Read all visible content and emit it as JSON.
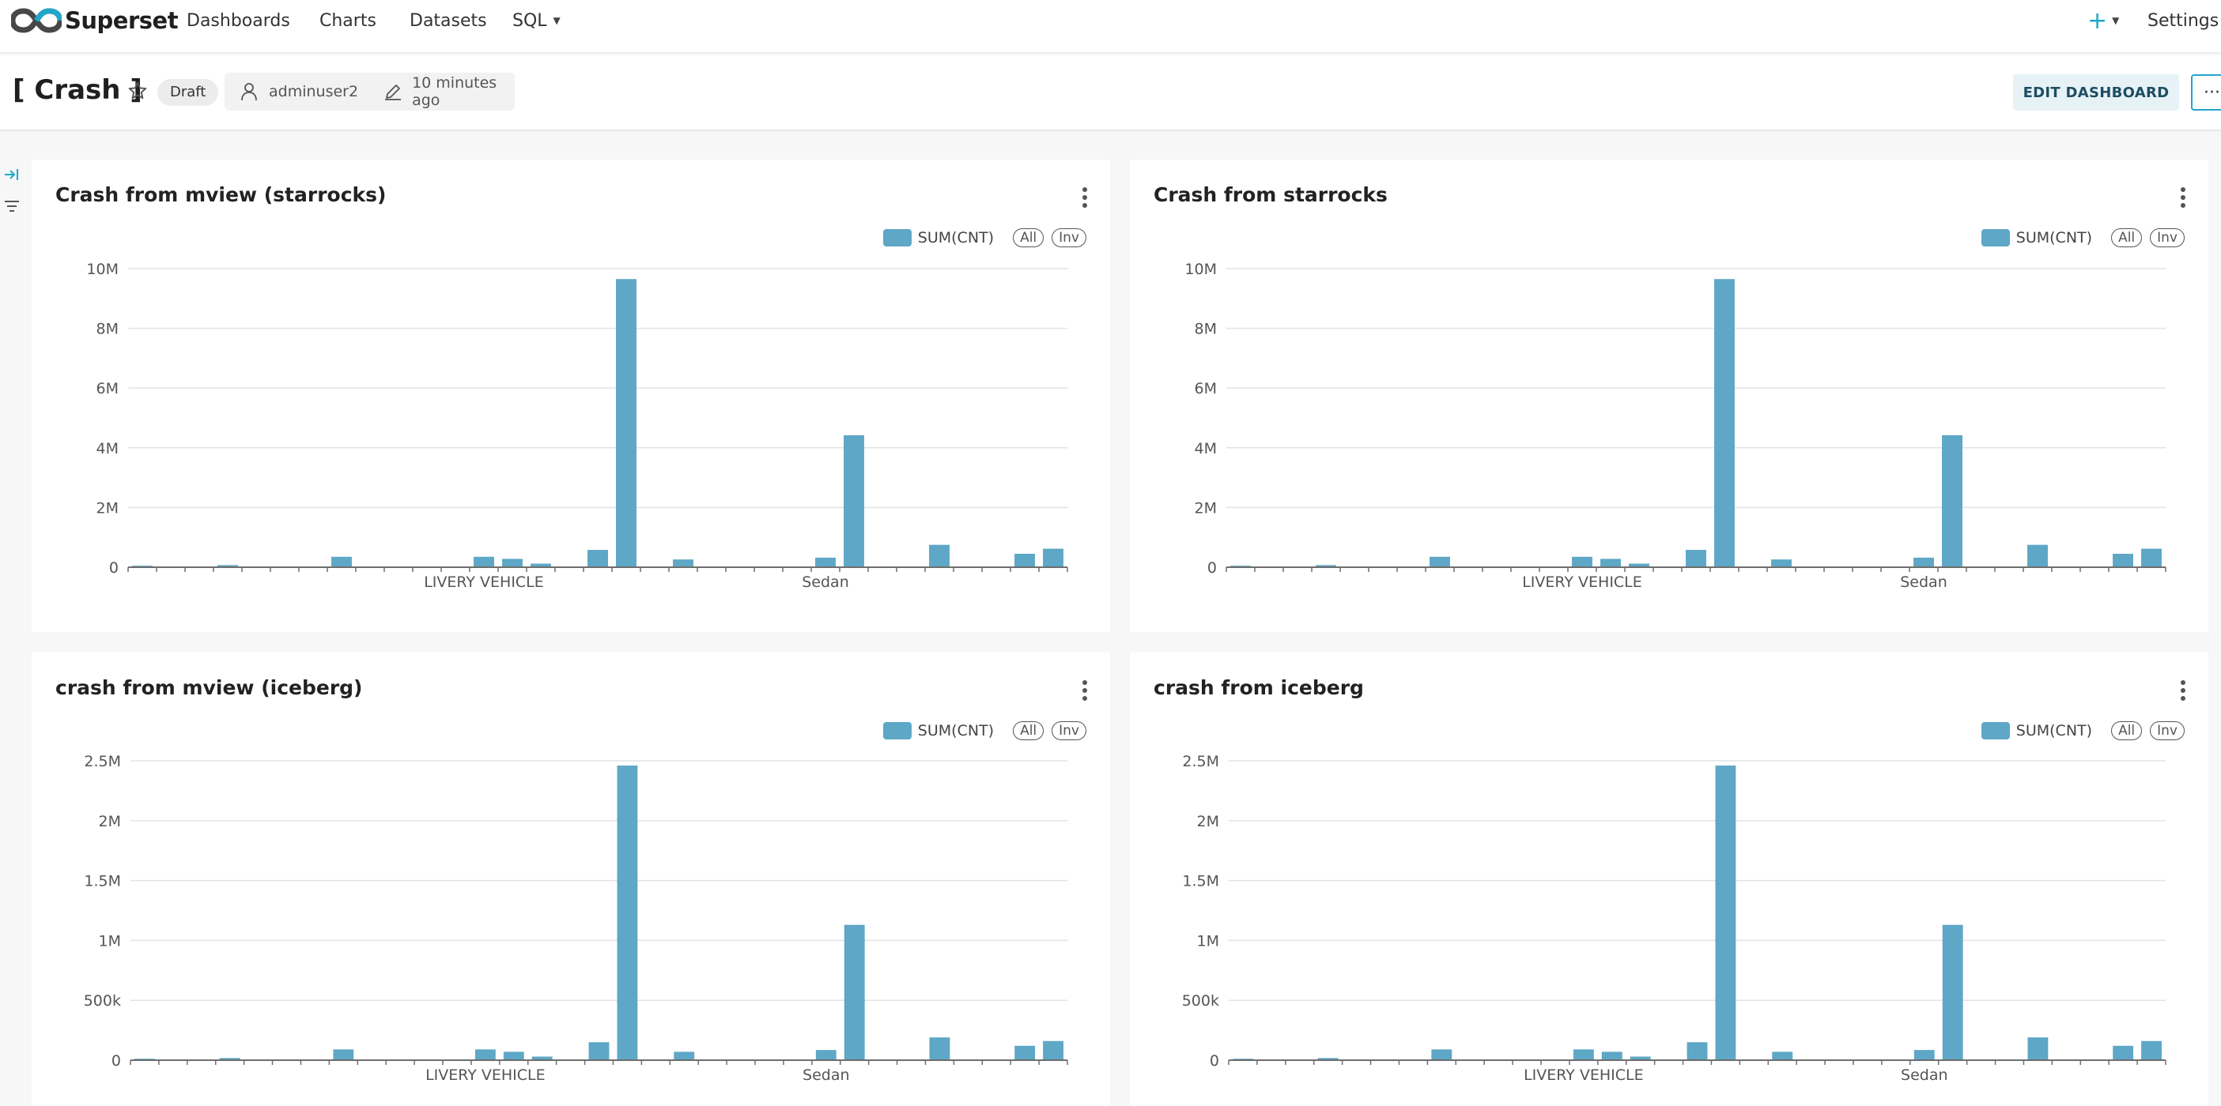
{
  "navbar": {
    "brand": "Superset",
    "items": [
      "Dashboards",
      "Charts",
      "Datasets",
      "SQL"
    ],
    "settings": "Settings"
  },
  "dashboard": {
    "title": "[ Crash ]",
    "status": "Draft",
    "owner": "adminuser2",
    "modified": "10 minutes ago",
    "edit_label": "EDIT DASHBOARD",
    "more_label": "···"
  },
  "colors": {
    "bar": "#5ea7c6",
    "accent": "#20a7c9"
  },
  "charts": [
    {
      "title": "Crash from mview (starrocks)",
      "legend": "SUM(CNT)",
      "all": "All",
      "inv": "Inv"
    },
    {
      "title": "Crash from starrocks",
      "legend": "SUM(CNT)",
      "all": "All",
      "inv": "Inv"
    },
    {
      "title": "crash from mview (iceberg)",
      "legend": "SUM(CNT)",
      "all": "All",
      "inv": "Inv"
    },
    {
      "title": "crash from iceberg",
      "legend": "SUM(CNT)",
      "all": "All",
      "inv": "Inv"
    }
  ],
  "chart_data": [
    {
      "type": "bar",
      "title": "Crash from mview (starrocks)",
      "series": [
        {
          "name": "SUM(CNT)"
        }
      ],
      "ylim": [
        0,
        10000000
      ],
      "yticks": [
        0,
        2000000,
        4000000,
        6000000,
        8000000,
        10000000
      ],
      "ytick_labels": [
        "0",
        "2M",
        "4M",
        "6M",
        "8M",
        "10M"
      ],
      "xtick_labels": [
        {
          "label": "LIVERY VEHICLE",
          "index": 12
        },
        {
          "label": "Sedan",
          "index": 24
        }
      ],
      "values": [
        50000,
        0,
        0,
        70000,
        0,
        0,
        0,
        350000,
        0,
        0,
        0,
        0,
        350000,
        280000,
        120000,
        0,
        580000,
        9650000,
        0,
        260000,
        0,
        0,
        0,
        0,
        320000,
        4420000,
        0,
        0,
        750000,
        0,
        0,
        450000,
        620000
      ],
      "grid": true,
      "legend_position": "top-right"
    },
    {
      "type": "bar",
      "title": "Crash from starrocks",
      "series": [
        {
          "name": "SUM(CNT)"
        }
      ],
      "ylim": [
        0,
        10000000
      ],
      "yticks": [
        0,
        2000000,
        4000000,
        6000000,
        8000000,
        10000000
      ],
      "ytick_labels": [
        "0",
        "2M",
        "4M",
        "6M",
        "8M",
        "10M"
      ],
      "xtick_labels": [
        {
          "label": "LIVERY VEHICLE",
          "index": 12
        },
        {
          "label": "Sedan",
          "index": 24
        }
      ],
      "values": [
        50000,
        0,
        0,
        70000,
        0,
        0,
        0,
        350000,
        0,
        0,
        0,
        0,
        350000,
        280000,
        120000,
        0,
        580000,
        9650000,
        0,
        260000,
        0,
        0,
        0,
        0,
        320000,
        4420000,
        0,
        0,
        750000,
        0,
        0,
        450000,
        620000
      ],
      "grid": true,
      "legend_position": "top-right"
    },
    {
      "type": "bar",
      "title": "crash from mview (iceberg)",
      "series": [
        {
          "name": "SUM(CNT)"
        }
      ],
      "ylim": [
        0,
        2500000
      ],
      "yticks": [
        0,
        500000,
        1000000,
        1500000,
        2000000,
        2500000
      ],
      "ytick_labels": [
        "0",
        "500k",
        "1M",
        "1.5M",
        "2M",
        "2.5M"
      ],
      "xtick_labels": [
        {
          "label": "LIVERY VEHICLE",
          "index": 12
        },
        {
          "label": "Sedan",
          "index": 24
        }
      ],
      "values": [
        12000,
        0,
        0,
        18000,
        0,
        0,
        0,
        90000,
        0,
        0,
        0,
        0,
        90000,
        70000,
        30000,
        0,
        150000,
        2460000,
        0,
        70000,
        0,
        0,
        0,
        0,
        85000,
        1130000,
        0,
        0,
        190000,
        0,
        0,
        120000,
        160000
      ],
      "grid": true,
      "legend_position": "top-right"
    },
    {
      "type": "bar",
      "title": "crash from iceberg",
      "series": [
        {
          "name": "SUM(CNT)"
        }
      ],
      "ylim": [
        0,
        2500000
      ],
      "yticks": [
        0,
        500000,
        1000000,
        1500000,
        2000000,
        2500000
      ],
      "ytick_labels": [
        "0",
        "500k",
        "1M",
        "1.5M",
        "2M",
        "2.5M"
      ],
      "xtick_labels": [
        {
          "label": "LIVERY VEHICLE",
          "index": 12
        },
        {
          "label": "Sedan",
          "index": 24
        }
      ],
      "values": [
        12000,
        0,
        0,
        18000,
        0,
        0,
        0,
        90000,
        0,
        0,
        0,
        0,
        90000,
        70000,
        30000,
        0,
        150000,
        2460000,
        0,
        70000,
        0,
        0,
        0,
        0,
        85000,
        1130000,
        0,
        0,
        190000,
        0,
        0,
        120000,
        160000
      ],
      "grid": true,
      "legend_position": "top-right"
    }
  ]
}
